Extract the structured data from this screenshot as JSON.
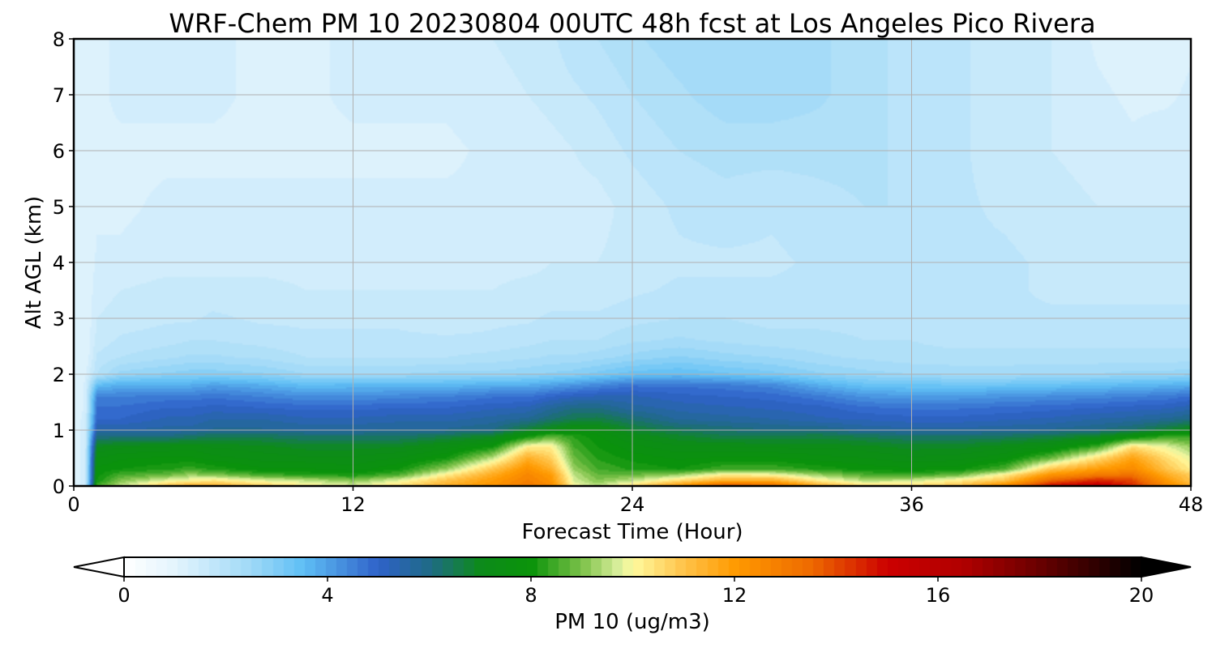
{
  "chart_data": {
    "type": "contour",
    "title": "WRF-Chem PM 10  20230804 00UTC 48h fcst at Los Angeles Pico Rivera",
    "xlabel": "Forecast Time (Hour)",
    "ylabel": "Alt AGL (km)",
    "xlim": [
      0,
      48
    ],
    "ylim": [
      0,
      8
    ],
    "xticks": [
      0,
      12,
      24,
      36,
      48
    ],
    "yticks": [
      0,
      1,
      2,
      3,
      4,
      5,
      6,
      7,
      8
    ],
    "grid": true,
    "colorbar": {
      "label": "PM 10  (ug/m3)",
      "min": 0,
      "max": 20,
      "ticks": [
        0,
        4,
        8,
        12,
        16,
        20
      ],
      "extend": "both",
      "stops": [
        {
          "v": 0,
          "c": "#ffffff"
        },
        {
          "v": 1,
          "c": "#e3f4fd"
        },
        {
          "v": 2.5,
          "c": "#9fd9f7"
        },
        {
          "v": 3.5,
          "c": "#5fbff5"
        },
        {
          "v": 5,
          "c": "#2f62c9"
        },
        {
          "v": 6,
          "c": "#1f6a86"
        },
        {
          "v": 7,
          "c": "#0d8b1a"
        },
        {
          "v": 8,
          "c": "#0a930a"
        },
        {
          "v": 9,
          "c": "#7ec24a"
        },
        {
          "v": 9.7,
          "c": "#d8ee9a"
        },
        {
          "v": 10,
          "c": "#fffa9e"
        },
        {
          "v": 11,
          "c": "#ffc34a"
        },
        {
          "v": 12,
          "c": "#ff9a00"
        },
        {
          "v": 13.5,
          "c": "#ee6a00"
        },
        {
          "v": 15,
          "c": "#cc0000"
        },
        {
          "v": 16.5,
          "c": "#b00000"
        },
        {
          "v": 18,
          "c": "#680000"
        },
        {
          "v": 20,
          "c": "#000000"
        }
      ]
    },
    "field": {
      "hours": [
        0,
        0.5,
        1,
        2,
        4,
        5,
        6,
        8,
        10,
        12,
        14,
        16,
        18,
        19.5,
        20.5,
        21.5,
        22.5,
        24,
        26,
        28,
        30,
        32,
        34,
        36,
        38,
        40,
        42,
        44,
        45.5,
        47,
        48
      ],
      "altitudes_km": [
        0,
        0.1,
        0.2,
        0.3,
        0.5,
        0.7,
        0.9,
        1.0,
        1.2,
        1.4,
        1.6,
        1.8,
        2.0,
        2.3,
        2.6,
        3.0,
        3.5,
        4.0,
        5.0,
        6.0,
        7.0,
        8.0
      ],
      "pm10": [
        [
          1.0,
          1.0,
          1.0,
          1.0,
          1.0,
          1.0,
          1.0,
          1.0,
          1.0,
          1.0,
          1.0,
          1.0,
          1.0,
          1.0,
          1.0,
          1.0,
          1.0,
          1.0,
          1.0,
          1.0,
          1.0,
          1.0
        ],
        [
          1.5,
          1.5,
          1.5,
          1.5,
          1.5,
          1.5,
          1.5,
          1.5,
          1.4,
          1.3,
          1.3,
          1.3,
          1.2,
          1.0,
          1.0,
          1.0,
          1.0,
          1.0,
          1.0,
          1.0,
          1.0,
          1.0
        ],
        [
          8.5,
          8.0,
          7.9,
          7.8,
          7.5,
          7.0,
          6.0,
          5.5,
          5.0,
          4.8,
          4.5,
          3.5,
          2.0,
          1.8,
          1.6,
          1.5,
          1.4,
          1.3,
          1.2,
          1.2,
          1.2,
          1.2
        ],
        [
          9.5,
          9.0,
          8.5,
          8.0,
          7.7,
          7.2,
          6.0,
          5.5,
          5.0,
          4.8,
          4.5,
          3.8,
          2.6,
          2.0,
          1.8,
          1.6,
          1.5,
          1.3,
          1.2,
          1.2,
          1.3,
          1.3
        ],
        [
          11.0,
          9.8,
          8.8,
          8.2,
          7.8,
          7.3,
          6.0,
          5.6,
          5.3,
          5.0,
          4.6,
          3.8,
          2.8,
          2.2,
          1.9,
          1.7,
          1.6,
          1.4,
          1.3,
          1.2,
          1.3,
          1.3
        ],
        [
          11.5,
          10.0,
          9.2,
          8.4,
          7.8,
          7.4,
          6.2,
          5.6,
          5.3,
          5.0,
          4.6,
          3.8,
          2.9,
          2.3,
          2.0,
          1.7,
          1.6,
          1.4,
          1.3,
          1.2,
          1.3,
          1.3
        ],
        [
          11.5,
          10.3,
          9.0,
          8.2,
          7.6,
          7.2,
          6.4,
          5.8,
          5.5,
          5.1,
          4.7,
          4.0,
          2.9,
          2.3,
          2.0,
          1.8,
          1.6,
          1.4,
          1.3,
          1.2,
          1.3,
          1.3
        ],
        [
          10.8,
          9.8,
          8.5,
          7.8,
          7.4,
          7.1,
          6.4,
          5.8,
          5.5,
          5.0,
          4.5,
          3.8,
          2.8,
          2.2,
          1.9,
          1.7,
          1.6,
          1.4,
          1.3,
          1.2,
          1.2,
          1.2
        ],
        [
          10.2,
          9.5,
          8.2,
          7.8,
          7.3,
          6.9,
          6.2,
          5.7,
          5.3,
          4.9,
          4.3,
          3.5,
          2.5,
          2.0,
          1.8,
          1.7,
          1.5,
          1.4,
          1.3,
          1.2,
          1.2,
          1.2
        ],
        [
          9.8,
          9.0,
          8.1,
          7.6,
          7.3,
          6.9,
          6.2,
          5.7,
          5.3,
          4.9,
          4.3,
          3.6,
          2.5,
          2.0,
          1.8,
          1.7,
          1.5,
          1.4,
          1.3,
          1.2,
          1.3,
          1.3
        ],
        [
          10.5,
          9.8,
          8.6,
          8.0,
          7.5,
          7.0,
          6.2,
          5.8,
          5.4,
          5.0,
          4.4,
          3.6,
          2.5,
          2.0,
          1.8,
          1.7,
          1.5,
          1.4,
          1.3,
          1.2,
          1.3,
          1.3
        ],
        [
          11.5,
          11.0,
          10.2,
          9.2,
          8.0,
          7.4,
          6.5,
          5.8,
          5.4,
          5.0,
          4.5,
          3.6,
          2.6,
          2.0,
          1.8,
          1.6,
          1.5,
          1.4,
          1.3,
          1.2,
          1.3,
          1.4
        ],
        [
          12.2,
          12.0,
          11.6,
          11.0,
          9.5,
          8.0,
          6.8,
          6.0,
          5.6,
          5.2,
          4.7,
          3.8,
          2.6,
          2.1,
          1.8,
          1.7,
          1.5,
          1.4,
          1.3,
          1.3,
          1.4,
          1.5
        ],
        [
          13.0,
          12.8,
          12.6,
          12.3,
          11.5,
          10.2,
          7.8,
          6.8,
          5.8,
          5.3,
          4.7,
          3.8,
          2.7,
          2.2,
          1.9,
          1.7,
          1.6,
          1.4,
          1.3,
          1.3,
          1.5,
          1.6
        ],
        [
          12.5,
          12.2,
          12.0,
          11.5,
          10.8,
          10.2,
          8.6,
          7.2,
          6.2,
          5.7,
          5.0,
          4.0,
          2.8,
          2.3,
          2.0,
          1.8,
          1.6,
          1.5,
          1.4,
          1.4,
          1.6,
          1.7
        ],
        [
          10.0,
          9.7,
          9.5,
          9.2,
          8.8,
          8.5,
          8.2,
          7.6,
          6.5,
          6.0,
          5.2,
          4.2,
          2.9,
          2.3,
          2.0,
          1.8,
          1.6,
          1.5,
          1.4,
          1.5,
          1.7,
          1.9
        ],
        [
          9.5,
          9.0,
          8.8,
          8.5,
          8.2,
          8.0,
          7.8,
          7.4,
          6.6,
          6.0,
          5.3,
          4.4,
          3.1,
          2.4,
          2.0,
          1.8,
          1.6,
          1.5,
          1.4,
          1.6,
          1.8,
          2.0
        ],
        [
          10.5,
          9.5,
          8.8,
          8.2,
          7.9,
          7.6,
          7.2,
          6.8,
          6.2,
          5.6,
          5.3,
          4.7,
          3.4,
          2.6,
          2.2,
          1.9,
          1.7,
          1.6,
          1.6,
          1.8,
          2.0,
          2.2
        ],
        [
          12.0,
          10.5,
          9.2,
          8.0,
          7.7,
          7.3,
          6.8,
          6.4,
          5.7,
          5.4,
          5.1,
          4.7,
          3.5,
          2.8,
          2.3,
          2.0,
          1.8,
          1.7,
          1.8,
          2.0,
          2.2,
          2.4
        ],
        [
          14.0,
          11.5,
          10.2,
          8.5,
          7.8,
          7.3,
          6.5,
          6.2,
          5.6,
          5.3,
          5.0,
          4.6,
          3.3,
          2.6,
          2.2,
          2.0,
          1.8,
          1.7,
          1.9,
          2.1,
          2.4,
          2.5
        ],
        [
          13.5,
          11.5,
          10.0,
          8.5,
          7.8,
          7.2,
          6.5,
          6.0,
          5.5,
          5.2,
          4.9,
          4.4,
          3.1,
          2.5,
          2.1,
          1.9,
          1.8,
          1.7,
          1.8,
          2.1,
          2.4,
          2.4
        ],
        [
          11.5,
          10.2,
          9.2,
          8.2,
          7.6,
          7.2,
          6.6,
          6.0,
          5.3,
          5.1,
          4.6,
          3.8,
          2.8,
          2.3,
          2.1,
          1.9,
          1.8,
          1.8,
          1.9,
          2.1,
          2.3,
          2.3
        ],
        [
          10.5,
          9.4,
          8.6,
          7.9,
          7.5,
          7.1,
          6.4,
          5.7,
          5.2,
          4.8,
          4.2,
          3.4,
          2.6,
          2.2,
          2.0,
          1.9,
          1.8,
          1.8,
          2.0,
          2.1,
          2.1,
          2.1
        ],
        [
          10.5,
          9.6,
          8.4,
          7.8,
          7.3,
          6.9,
          6.2,
          5.6,
          5.1,
          4.7,
          4.1,
          3.3,
          2.5,
          2.1,
          2.0,
          1.9,
          1.8,
          1.8,
          2.0,
          1.9,
          1.9,
          1.9
        ],
        [
          11.0,
          10.2,
          8.8,
          7.9,
          7.4,
          6.9,
          6.2,
          5.6,
          5.1,
          4.7,
          4.1,
          3.3,
          2.4,
          2.1,
          1.9,
          1.8,
          1.8,
          1.8,
          1.8,
          1.8,
          1.8,
          1.8
        ],
        [
          12.5,
          11.0,
          10.2,
          8.6,
          7.7,
          7.2,
          6.3,
          5.7,
          5.2,
          4.8,
          4.2,
          3.3,
          2.4,
          2.1,
          1.9,
          1.8,
          1.8,
          1.8,
          1.7,
          1.6,
          1.6,
          1.6
        ],
        [
          15.0,
          13.5,
          12.2,
          11.0,
          8.8,
          7.5,
          6.5,
          5.8,
          5.3,
          4.9,
          4.3,
          3.4,
          2.5,
          2.1,
          1.9,
          1.8,
          1.7,
          1.7,
          1.6,
          1.5,
          1.5,
          1.5
        ],
        [
          15.5,
          14.5,
          13.0,
          12.0,
          10.5,
          8.5,
          6.8,
          6.0,
          5.5,
          5.0,
          4.4,
          3.5,
          2.5,
          2.1,
          1.9,
          1.8,
          1.7,
          1.6,
          1.5,
          1.4,
          1.3,
          1.2
        ],
        [
          14.5,
          14.0,
          13.2,
          12.5,
          11.8,
          10.5,
          7.5,
          6.3,
          5.6,
          5.1,
          4.5,
          3.6,
          2.6,
          2.1,
          1.9,
          1.8,
          1.7,
          1.6,
          1.5,
          1.3,
          1.2,
          1.1
        ],
        [
          12.5,
          12.0,
          11.5,
          11.0,
          10.5,
          9.8,
          8.3,
          6.8,
          5.8,
          5.2,
          4.6,
          3.7,
          2.6,
          2.1,
          1.9,
          1.8,
          1.7,
          1.6,
          1.5,
          1.4,
          1.2,
          1.1
        ],
        [
          11.5,
          11.0,
          10.8,
          10.2,
          9.8,
          9.2,
          8.3,
          7.2,
          6.0,
          5.4,
          4.8,
          3.8,
          2.7,
          2.1,
          1.9,
          1.8,
          1.7,
          1.6,
          1.5,
          1.4,
          1.3,
          1.2
        ]
      ]
    }
  }
}
